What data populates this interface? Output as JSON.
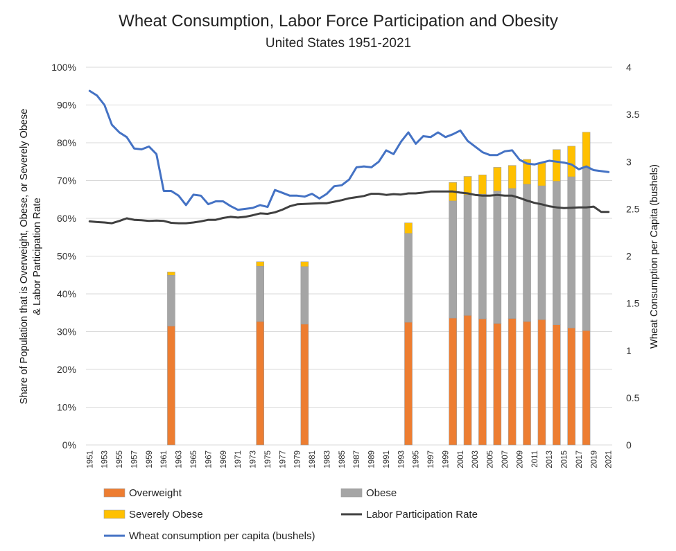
{
  "chart_data": {
    "type": "bar",
    "title": "Wheat Consumption, Labor Force Participation and Obesity",
    "subtitle": "United States 1951-2021",
    "ylabel_left_line1": "Share of Population that is Overweight, Obese, or Severely Obese",
    "ylabel_left_line2": "& Labor Participation Rate",
    "ylabel_right": "Wheat Consumption per Capita (bushels)",
    "y_left_range": [
      0,
      100
    ],
    "y_left_ticks": [
      "0%",
      "10%",
      "20%",
      "30%",
      "40%",
      "50%",
      "60%",
      "70%",
      "80%",
      "90%",
      "100%"
    ],
    "y_right_range": [
      0,
      4
    ],
    "y_right_ticks": [
      "0",
      "0.5",
      "1",
      "1.5",
      "2",
      "2.5",
      "3",
      "3.5",
      "4"
    ],
    "x_range": [
      1951,
      2021
    ],
    "x_ticks": [
      "1951",
      "1953",
      "1955",
      "1957",
      "1959",
      "1961",
      "1963",
      "1965",
      "1967",
      "1969",
      "1971",
      "1973",
      "1975",
      "1977",
      "1979",
      "1981",
      "1983",
      "1985",
      "1987",
      "1989",
      "1991",
      "1993",
      "1995",
      "1997",
      "1999",
      "2001",
      "2003",
      "2005",
      "2007",
      "2009",
      "2011",
      "2013",
      "2015",
      "2017",
      "2019",
      "2021"
    ],
    "grid": "horizontal",
    "legend_position": "bottom",
    "bar_years": [
      1962,
      1974,
      1980,
      1994,
      2000,
      2002,
      2004,
      2006,
      2008,
      2010,
      2012,
      2014,
      2016,
      2018
    ],
    "series": [
      {
        "name": "Overweight",
        "kind": "stacked-bar",
        "axis": "left",
        "color": "#ED7D31",
        "values": [
          31.5,
          32.7,
          32.0,
          32.5,
          33.6,
          34.3,
          33.4,
          32.2,
          33.5,
          32.7,
          33.2,
          31.8,
          31.0,
          30.3
        ]
      },
      {
        "name": "Obese",
        "kind": "stacked-bar",
        "axis": "left",
        "color": "#A5A5A5",
        "values": [
          13.4,
          14.6,
          15.2,
          23.5,
          31.0,
          31.9,
          33.0,
          35.0,
          34.4,
          36.3,
          35.4,
          38.0,
          40.0,
          43.0
        ]
      },
      {
        "name": "Severely Obese",
        "kind": "stacked-bar",
        "axis": "left",
        "color": "#FFC000",
        "values": [
          0.9,
          1.2,
          1.3,
          2.8,
          4.9,
          4.9,
          5.1,
          6.3,
          6.1,
          6.6,
          6.1,
          8.4,
          8.1,
          9.5
        ]
      },
      {
        "name": "Labor Participation Rate",
        "kind": "line",
        "axis": "left",
        "color": "#404040",
        "x": [
          1951,
          1952,
          1953,
          1954,
          1955,
          1956,
          1957,
          1958,
          1959,
          1960,
          1961,
          1962,
          1963,
          1964,
          1965,
          1966,
          1967,
          1968,
          1969,
          1970,
          1971,
          1972,
          1973,
          1974,
          1975,
          1976,
          1977,
          1978,
          1979,
          1980,
          1981,
          1982,
          1983,
          1984,
          1985,
          1986,
          1987,
          1988,
          1989,
          1990,
          1991,
          1992,
          1993,
          1994,
          1995,
          1996,
          1997,
          1998,
          1999,
          2000,
          2001,
          2002,
          2003,
          2004,
          2005,
          2006,
          2007,
          2008,
          2009,
          2010,
          2011,
          2012,
          2013,
          2014,
          2015,
          2016,
          2017,
          2018,
          2019,
          2020,
          2021
        ],
        "values": [
          59.2,
          59.0,
          58.9,
          58.7,
          59.3,
          60.0,
          59.6,
          59.5,
          59.3,
          59.4,
          59.3,
          58.8,
          58.7,
          58.7,
          58.9,
          59.2,
          59.6,
          59.6,
          60.1,
          60.4,
          60.2,
          60.4,
          60.8,
          61.3,
          61.2,
          61.6,
          62.3,
          63.2,
          63.7,
          63.8,
          63.9,
          64.0,
          64.0,
          64.4,
          64.8,
          65.3,
          65.6,
          65.9,
          66.5,
          66.5,
          66.2,
          66.4,
          66.3,
          66.6,
          66.6,
          66.8,
          67.1,
          67.1,
          67.1,
          67.1,
          66.8,
          66.6,
          66.2,
          66.0,
          66.0,
          66.2,
          66.0,
          66.0,
          65.4,
          64.7,
          64.1,
          63.7,
          63.2,
          62.9,
          62.7,
          62.8,
          62.9,
          62.9,
          63.1,
          61.7,
          61.7
        ]
      },
      {
        "name": "Wheat consumption per capita (bushels)",
        "kind": "line",
        "axis": "right",
        "color": "#4472C4",
        "x": [
          1951,
          1952,
          1953,
          1954,
          1955,
          1956,
          1957,
          1958,
          1959,
          1960,
          1961,
          1962,
          1963,
          1964,
          1965,
          1966,
          1967,
          1968,
          1969,
          1970,
          1971,
          1972,
          1973,
          1974,
          1975,
          1976,
          1977,
          1978,
          1979,
          1980,
          1981,
          1982,
          1983,
          1984,
          1985,
          1986,
          1987,
          1988,
          1989,
          1990,
          1991,
          1992,
          1993,
          1994,
          1995,
          1996,
          1997,
          1998,
          1999,
          2000,
          2001,
          2002,
          2003,
          2004,
          2005,
          2006,
          2007,
          2008,
          2009,
          2010,
          2011,
          2012,
          2013,
          2014,
          2015,
          2016,
          2017,
          2018,
          2019,
          2020,
          2021
        ],
        "values": [
          3.75,
          3.7,
          3.6,
          3.39,
          3.31,
          3.26,
          3.14,
          3.13,
          3.16,
          3.08,
          2.69,
          2.69,
          2.64,
          2.54,
          2.65,
          2.64,
          2.55,
          2.58,
          2.58,
          2.53,
          2.49,
          2.5,
          2.51,
          2.54,
          2.52,
          2.7,
          2.67,
          2.64,
          2.64,
          2.63,
          2.66,
          2.61,
          2.66,
          2.74,
          2.75,
          2.81,
          2.94,
          2.95,
          2.94,
          3.0,
          3.12,
          3.08,
          3.21,
          3.31,
          3.19,
          3.27,
          3.26,
          3.31,
          3.26,
          3.29,
          3.33,
          3.22,
          3.16,
          3.1,
          3.07,
          3.07,
          3.11,
          3.12,
          3.02,
          2.98,
          2.97,
          2.99,
          3.01,
          3.0,
          2.99,
          2.97,
          2.92,
          2.95,
          2.91,
          2.9,
          2.89
        ]
      }
    ]
  }
}
